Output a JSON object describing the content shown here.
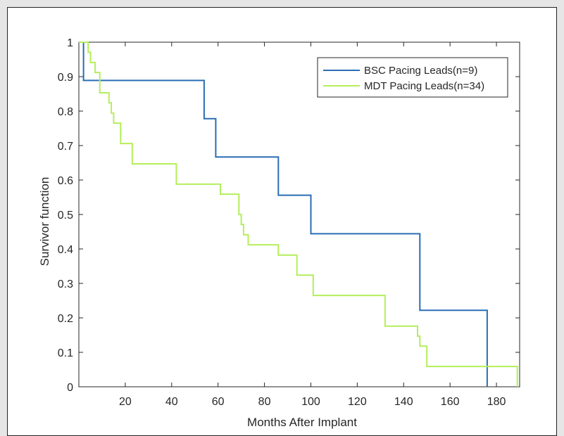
{
  "chart_data": {
    "type": "line",
    "title": "",
    "xlabel": "Months After Implant",
    "ylabel": "Survivor function",
    "xlim": [
      0,
      190
    ],
    "ylim": [
      0,
      1
    ],
    "xticks": [
      20,
      40,
      60,
      80,
      100,
      120,
      140,
      160,
      180
    ],
    "yticks": [
      0,
      0.1,
      0.2,
      0.3,
      0.4,
      0.5,
      0.6,
      0.7,
      0.8,
      0.9,
      1
    ],
    "grid": false,
    "legend_position": "top-right",
    "step": true,
    "series": [
      {
        "name": "BSC Pacing Leads(n=9)",
        "color": "#2a6db5",
        "x": [
          0,
          2,
          2,
          54,
          54,
          59,
          59,
          86,
          86,
          100,
          100,
          147,
          147,
          176,
          176
        ],
        "y": [
          1,
          1,
          0.889,
          0.889,
          0.778,
          0.778,
          0.667,
          0.667,
          0.556,
          0.556,
          0.444,
          0.444,
          0.222,
          0.222,
          0
        ]
      },
      {
        "name": "MDT Pacing Leads(n=34)",
        "color": "#b4ee5a",
        "x": [
          0,
          4,
          4,
          5,
          5,
          7,
          7,
          9,
          9,
          13,
          13,
          14,
          14,
          15,
          15,
          18,
          18,
          23,
          23,
          42,
          42,
          61,
          61,
          69,
          69,
          70,
          70,
          71,
          71,
          73,
          73,
          86,
          86,
          94,
          94,
          101,
          101,
          132,
          132,
          146,
          146,
          147,
          147,
          150,
          150,
          189,
          189
        ],
        "y": [
          1,
          1,
          0.971,
          0.971,
          0.941,
          0.941,
          0.912,
          0.912,
          0.853,
          0.853,
          0.824,
          0.824,
          0.794,
          0.794,
          0.765,
          0.765,
          0.706,
          0.706,
          0.647,
          0.647,
          0.588,
          0.588,
          0.559,
          0.559,
          0.5,
          0.5,
          0.471,
          0.471,
          0.441,
          0.441,
          0.412,
          0.412,
          0.382,
          0.382,
          0.324,
          0.324,
          0.265,
          0.265,
          0.176,
          0.176,
          0.147,
          0.147,
          0.118,
          0.118,
          0.059,
          0.059,
          0
        ]
      }
    ]
  }
}
